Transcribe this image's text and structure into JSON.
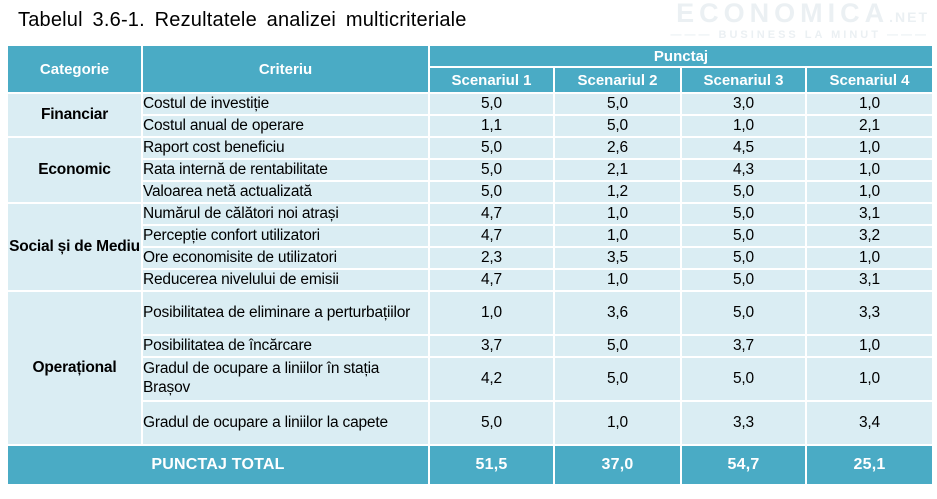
{
  "page": {
    "title": "Tabelul 3.6-1. Rezultatele analizei multicriteriale"
  },
  "watermark": {
    "brand": "ECONOMICA",
    "tld": ".NET",
    "tagline": "———  BUSINESS LA MINUT  ———"
  },
  "colors": {
    "header_teal": "#4AABC5",
    "body_light_blue": "#DAEDF3",
    "grid_white": "#FFFFFF",
    "text_black": "#000000",
    "header_text_white": "#FFFFFF"
  },
  "table": {
    "headers": {
      "category": "Categorie",
      "criterion": "Criteriu",
      "score_group": "Punctaj",
      "scenarios": [
        "Scenariul 1",
        "Scenariul 2",
        "Scenariul 3",
        "Scenariul 4"
      ]
    },
    "groups": [
      {
        "category": "Financiar",
        "rows": [
          {
            "criterion": "Costul de investiție",
            "values": [
              "5,0",
              "5,0",
              "3,0",
              "1,0"
            ]
          },
          {
            "criterion": "Costul anual de operare",
            "values": [
              "1,1",
              "5,0",
              "1,0",
              "2,1"
            ]
          }
        ]
      },
      {
        "category": "Economic",
        "rows": [
          {
            "criterion": "Raport cost beneficiu",
            "values": [
              "5,0",
              "2,6",
              "4,5",
              "1,0"
            ]
          },
          {
            "criterion": "Rata internă de rentabilitate",
            "values": [
              "5,0",
              "2,1",
              "4,3",
              "1,0"
            ]
          },
          {
            "criterion": "Valoarea netă actualizată",
            "values": [
              "5,0",
              "1,2",
              "5,0",
              "1,0"
            ]
          }
        ]
      },
      {
        "category": "Social și de Mediu",
        "rows": [
          {
            "criterion": "Numărul de călători noi atrași",
            "values": [
              "4,7",
              "1,0",
              "5,0",
              "3,1"
            ]
          },
          {
            "criterion": "Percepție confort utilizatori",
            "values": [
              "4,7",
              "1,0",
              "5,0",
              "3,2"
            ]
          },
          {
            "criterion": "Ore economisite de utilizatori",
            "values": [
              "2,3",
              "3,5",
              "5,0",
              "1,0"
            ]
          },
          {
            "criterion": "Reducerea nivelului de emisii",
            "values": [
              "4,7",
              "1,0",
              "5,0",
              "3,1"
            ]
          }
        ]
      },
      {
        "category": "Operațional",
        "rows": [
          {
            "criterion": "Posibilitatea de eliminare a perturbațiilor",
            "values": [
              "1,0",
              "3,6",
              "5,0",
              "3,3"
            ],
            "tall": true
          },
          {
            "criterion": "Posibilitatea de încărcare",
            "values": [
              "3,7",
              "5,0",
              "3,7",
              "1,0"
            ]
          },
          {
            "criterion": "Gradul de ocupare a liniilor în stația Brașov",
            "values": [
              "4,2",
              "5,0",
              "5,0",
              "1,0"
            ],
            "tall": true
          },
          {
            "criterion": "Gradul de ocupare a liniilor la capete",
            "values": [
              "5,0",
              "1,0",
              "3,3",
              "3,4"
            ],
            "tall": true
          }
        ]
      }
    ],
    "total": {
      "label": "PUNCTAJ TOTAL",
      "values": [
        "51,5",
        "37,0",
        "54,7",
        "25,1"
      ]
    }
  }
}
